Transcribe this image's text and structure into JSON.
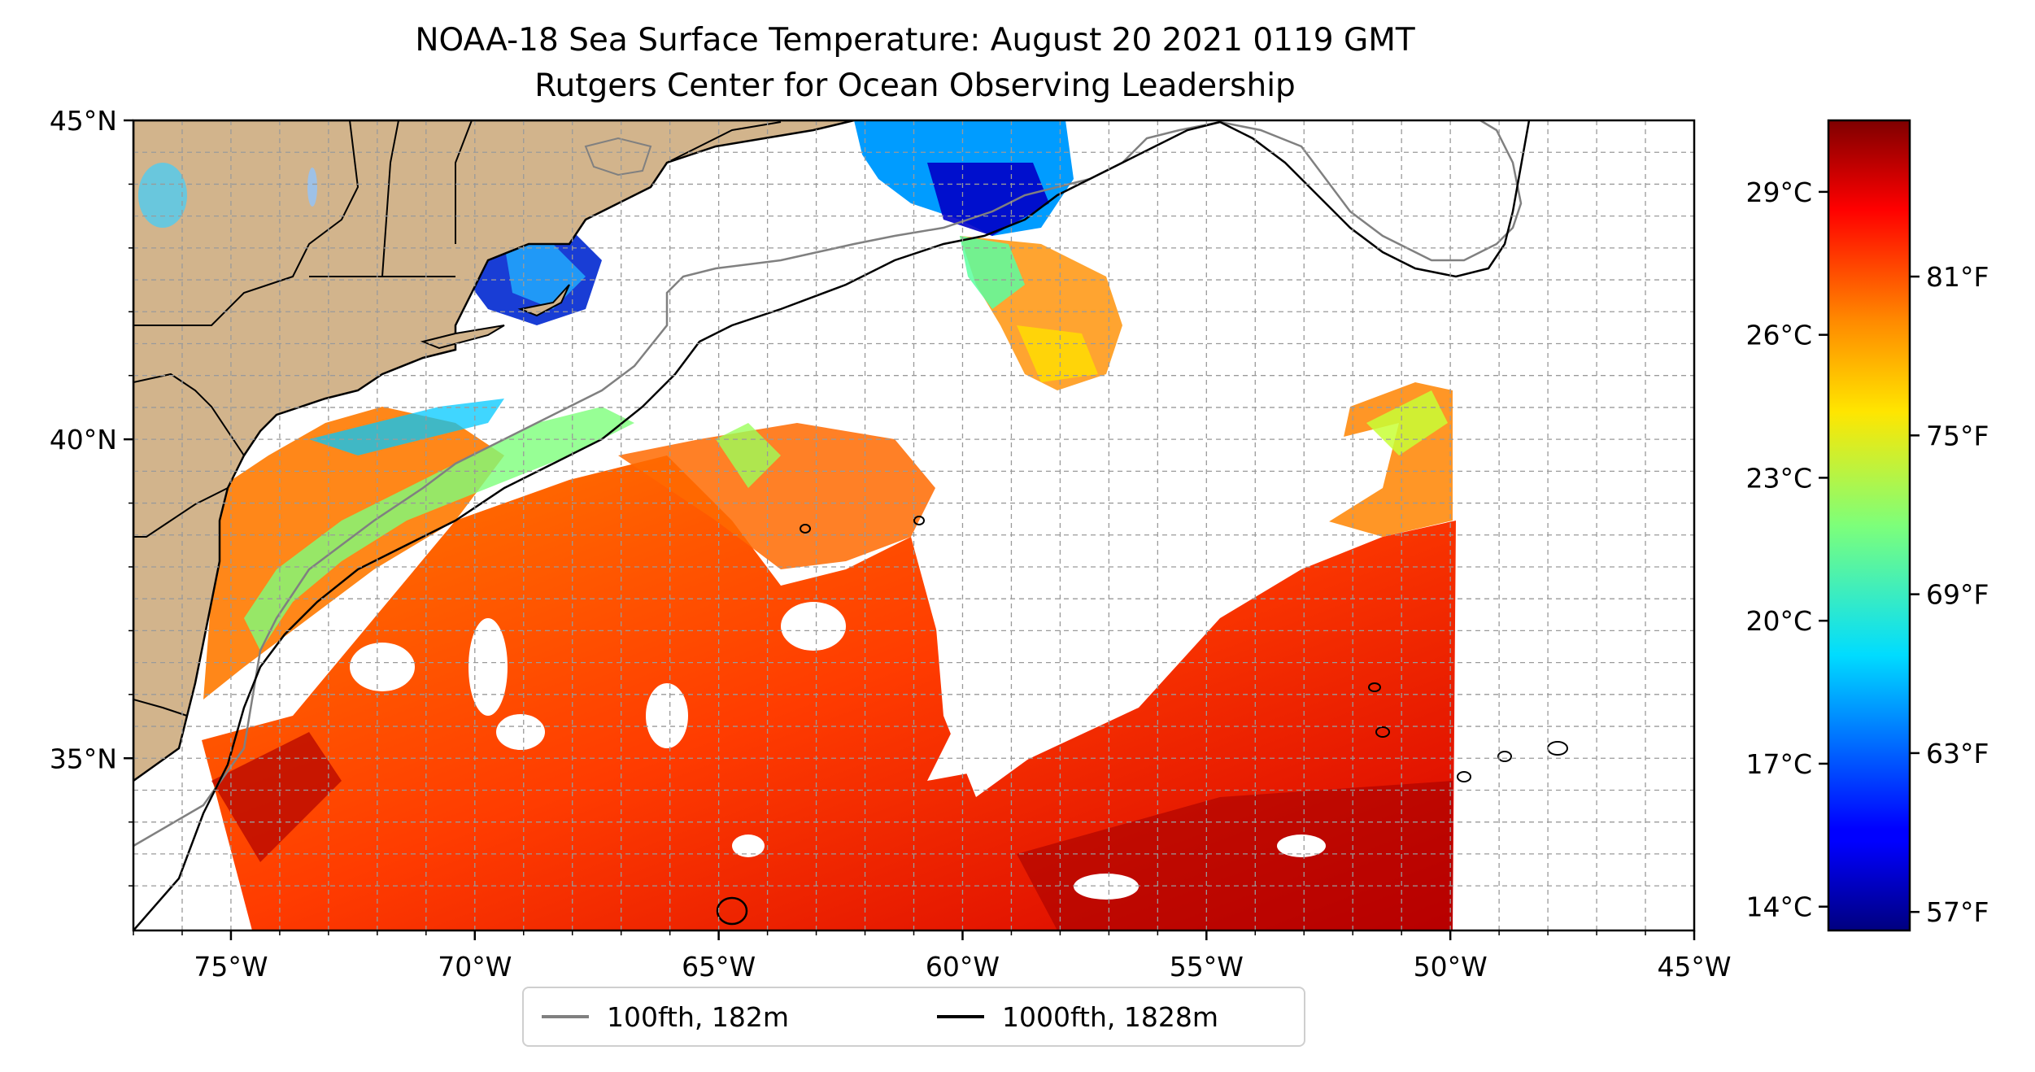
{
  "title": {
    "line1": "NOAA-18 Sea Surface Temperature: August 20 2021 0119 GMT",
    "line2": "Rutgers Center for Ocean Observing Leadership"
  },
  "map": {
    "lon_range": [
      -77,
      -45
    ],
    "lat_range": [
      32.3,
      45
    ],
    "x_ticks": [
      "75°W",
      "70°W",
      "65°W",
      "60°W",
      "55°W",
      "50°W",
      "45°W"
    ],
    "x_tick_values": [
      -75,
      -70,
      -65,
      -60,
      -55,
      -50,
      -45
    ],
    "y_ticks": [
      "45°N",
      "40°N",
      "35°N"
    ],
    "y_tick_values": [
      45,
      40,
      35
    ],
    "grid": true,
    "land_color": "#d2b48c",
    "lake_color": "#9ec1e6"
  },
  "colorbar": {
    "celsius_labels": [
      "29°C",
      "26°C",
      "23°C",
      "20°C",
      "17°C",
      "14°C"
    ],
    "celsius_values": [
      29,
      26,
      23,
      20,
      17,
      14
    ],
    "fahrenheit_labels": [
      "81°F",
      "75°F",
      "69°F",
      "63°F",
      "57°F"
    ],
    "fahrenheit_values": [
      81,
      75,
      69,
      63,
      57
    ],
    "min_c": 13.5,
    "max_c": 30.5,
    "colormap": "jet"
  },
  "legend": {
    "items": [
      {
        "label": "100fth, 182m",
        "color": "#808080"
      },
      {
        "label": "1000fth, 1828m",
        "color": "#000000"
      }
    ]
  }
}
